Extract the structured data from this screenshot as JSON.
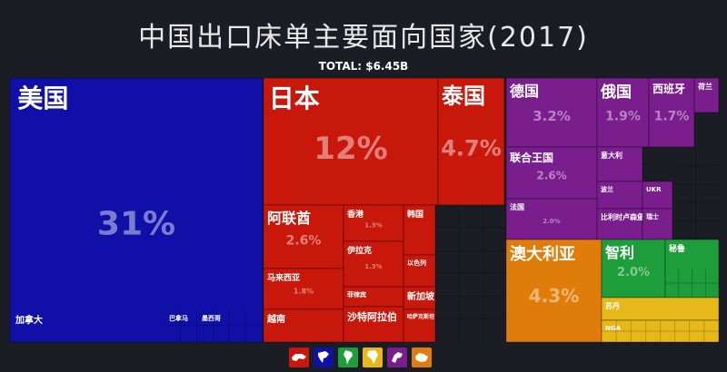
{
  "title": "中国出口床单主要面向国家(2017)",
  "total": "TOTAL: $6.45B",
  "colors": {
    "north_america": "#1010a8",
    "asia": "#c8180c",
    "europe": "#7a1e8e",
    "oceania": "#e07c0a",
    "south_america": "#1e9e3a",
    "africa": "#e6b81a"
  },
  "chart_data": {
    "type": "treemap",
    "unit": "% of total",
    "items": [
      {
        "name": "美国",
        "value": 31,
        "label": "31%",
        "region": "north_america"
      },
      {
        "name": "加拿大",
        "region": "north_america"
      },
      {
        "name": "巴拿马",
        "region": "north_america"
      },
      {
        "name": "墨西哥",
        "region": "north_america"
      },
      {
        "name": "日本",
        "value": 12,
        "label": "12%",
        "region": "asia"
      },
      {
        "name": "泰国",
        "value": 4.7,
        "label": "4.7%",
        "region": "asia"
      },
      {
        "name": "阿联酋",
        "value": 2.6,
        "label": "2.6%",
        "region": "asia"
      },
      {
        "name": "香港",
        "value": 1.3,
        "label": "1.3%",
        "region": "asia"
      },
      {
        "name": "伊拉克",
        "value": 1.3,
        "label": "1.3%",
        "region": "asia"
      },
      {
        "name": "韩国",
        "region": "asia"
      },
      {
        "name": "以色列",
        "region": "asia"
      },
      {
        "name": "马来西亚",
        "value": 1.8,
        "label": "1.8%",
        "region": "asia"
      },
      {
        "name": "菲律宾",
        "region": "asia"
      },
      {
        "name": "新加坡",
        "region": "asia"
      },
      {
        "name": "越南",
        "region": "asia"
      },
      {
        "name": "沙特阿拉伯",
        "region": "asia"
      },
      {
        "name": "哈萨克斯坦",
        "region": "asia"
      },
      {
        "name": "德国",
        "value": 3.2,
        "label": "3.2%",
        "region": "europe"
      },
      {
        "name": "俄国",
        "value": 1.9,
        "label": "1.9%",
        "region": "europe"
      },
      {
        "name": "西班牙",
        "value": 1.7,
        "label": "1.7%",
        "region": "europe"
      },
      {
        "name": "荷兰",
        "region": "europe"
      },
      {
        "name": "联合王国",
        "value": 2.6,
        "label": "2.6%",
        "region": "europe"
      },
      {
        "name": "意大利",
        "region": "europe"
      },
      {
        "name": "波兰",
        "region": "europe"
      },
      {
        "name": "UKR",
        "region": "europe"
      },
      {
        "name": "法国",
        "value": 2.0,
        "label": "2.0%",
        "region": "europe"
      },
      {
        "name": "比利时卢森堡",
        "region": "europe"
      },
      {
        "name": "瑞士",
        "region": "europe"
      },
      {
        "name": "澳大利亚",
        "value": 4.3,
        "label": "4.3%",
        "region": "oceania"
      },
      {
        "name": "智利",
        "value": 2.0,
        "label": "2.0%",
        "region": "south_america"
      },
      {
        "name": "秘鲁",
        "region": "south_america"
      },
      {
        "name": "苏丹",
        "region": "africa"
      },
      {
        "name": "NGA",
        "region": "africa"
      }
    ]
  },
  "legend": [
    {
      "icon": "asia-icon",
      "region": "asia"
    },
    {
      "icon": "north-america-icon",
      "region": "north_america"
    },
    {
      "icon": "south-america-icon",
      "region": "south_america"
    },
    {
      "icon": "africa-icon",
      "region": "africa"
    },
    {
      "icon": "europe-icon",
      "region": "europe"
    },
    {
      "icon": "oceania-icon",
      "region": "oceania"
    }
  ]
}
